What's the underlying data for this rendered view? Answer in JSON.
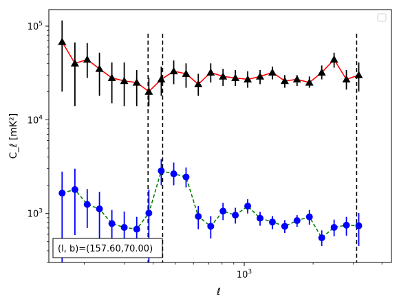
{
  "chart_data": {
    "type": "line",
    "title": "",
    "xlabel": "ℓ",
    "ylabel": "C_ℓ  [mK²]",
    "xscale": "log",
    "yscale": "log",
    "xlim": [
      140,
      4400
    ],
    "ylim": [
      300,
      150000
    ],
    "x_ticks": [
      {
        "value": 1000,
        "base": "10",
        "exp": "3"
      }
    ],
    "y_ticks": [
      {
        "value": 1000,
        "base": "10",
        "exp": "3"
      },
      {
        "value": 10000,
        "base": "10",
        "exp": "4"
      },
      {
        "value": 100000,
        "base": "10",
        "exp": "5"
      }
    ],
    "legend": {
      "placement": "top-right",
      "entries": []
    },
    "vlines": [
      {
        "x": 380,
        "color": "#000000",
        "style": "dashed"
      },
      {
        "x": 440,
        "color": "#000000",
        "style": "dashed"
      },
      {
        "x": 3100,
        "color": "#000000",
        "style": "dashed"
      }
    ],
    "annotation": "(l, b)=(157.60,70.00)",
    "series": [
      {
        "color": "#ff0000",
        "line_style": "solid",
        "marker": "triangle",
        "marker_color": "#000000",
        "errorbar_color": "#000000",
        "points": [
          {
            "x": 160,
            "y": 68000,
            "lo": 20000,
            "hi": 115000
          },
          {
            "x": 182,
            "y": 40000,
            "lo": 14000,
            "hi": 67000
          },
          {
            "x": 206,
            "y": 44000,
            "lo": 28000,
            "hi": 66000
          },
          {
            "x": 233,
            "y": 35000,
            "lo": 18000,
            "hi": 52000
          },
          {
            "x": 264,
            "y": 28000,
            "lo": 15000,
            "hi": 41000
          },
          {
            "x": 299,
            "y": 26000,
            "lo": 14000,
            "hi": 41000
          },
          {
            "x": 339,
            "y": 25000,
            "lo": 14000,
            "hi": 34000
          },
          {
            "x": 383,
            "y": 20000,
            "lo": 14000,
            "hi": 28000
          },
          {
            "x": 434,
            "y": 27000,
            "lo": 18000,
            "hi": 37000
          },
          {
            "x": 492,
            "y": 33000,
            "lo": 24000,
            "hi": 43000
          },
          {
            "x": 557,
            "y": 31000,
            "lo": 22000,
            "hi": 40000
          },
          {
            "x": 630,
            "y": 24000,
            "lo": 18000,
            "hi": 31000
          },
          {
            "x": 714,
            "y": 32000,
            "lo": 25000,
            "hi": 40000
          },
          {
            "x": 808,
            "y": 29000,
            "lo": 23000,
            "hi": 35000
          },
          {
            "x": 915,
            "y": 28000,
            "lo": 23000,
            "hi": 34000
          },
          {
            "x": 1036,
            "y": 27000,
            "lo": 22000,
            "hi": 33000
          },
          {
            "x": 1173,
            "y": 29000,
            "lo": 24000,
            "hi": 34000
          },
          {
            "x": 1328,
            "y": 32000,
            "lo": 27000,
            "hi": 37000
          },
          {
            "x": 1504,
            "y": 26000,
            "lo": 22000,
            "hi": 30000
          },
          {
            "x": 1702,
            "y": 27000,
            "lo": 23000,
            "hi": 30000
          },
          {
            "x": 1927,
            "y": 25000,
            "lo": 22000,
            "hi": 29000
          },
          {
            "x": 2182,
            "y": 32000,
            "lo": 27000,
            "hi": 38000
          },
          {
            "x": 2471,
            "y": 44000,
            "lo": 36000,
            "hi": 52000
          },
          {
            "x": 2797,
            "y": 27000,
            "lo": 21000,
            "hi": 34000
          },
          {
            "x": 3167,
            "y": 30000,
            "lo": 20000,
            "hi": 41000
          }
        ]
      },
      {
        "color": "#008000",
        "line_style": "dashed",
        "marker": "circle",
        "marker_color": "#0000ff",
        "errorbar_color": "#0000ff",
        "points": [
          {
            "x": 160,
            "y": 1650,
            "lo": 300,
            "hi": 2800
          },
          {
            "x": 182,
            "y": 1800,
            "lo": 590,
            "hi": 3000
          },
          {
            "x": 206,
            "y": 1250,
            "lo": 700,
            "hi": 1820
          },
          {
            "x": 233,
            "y": 1120,
            "lo": 520,
            "hi": 1700
          },
          {
            "x": 264,
            "y": 780,
            "lo": 480,
            "hi": 1090
          },
          {
            "x": 299,
            "y": 710,
            "lo": 370,
            "hi": 1050
          },
          {
            "x": 339,
            "y": 680,
            "lo": 400,
            "hi": 920
          },
          {
            "x": 383,
            "y": 1010,
            "lo": 300,
            "hi": 1800
          },
          {
            "x": 434,
            "y": 2850,
            "lo": 2000,
            "hi": 3800
          },
          {
            "x": 492,
            "y": 2650,
            "lo": 2000,
            "hi": 3500
          },
          {
            "x": 557,
            "y": 2450,
            "lo": 1900,
            "hi": 3100
          },
          {
            "x": 630,
            "y": 930,
            "lo": 680,
            "hi": 1200
          },
          {
            "x": 714,
            "y": 730,
            "lo": 540,
            "hi": 940
          },
          {
            "x": 808,
            "y": 1060,
            "lo": 850,
            "hi": 1300
          },
          {
            "x": 915,
            "y": 960,
            "lo": 780,
            "hi": 1150
          },
          {
            "x": 1036,
            "y": 1200,
            "lo": 1000,
            "hi": 1420
          },
          {
            "x": 1173,
            "y": 890,
            "lo": 740,
            "hi": 1040
          },
          {
            "x": 1328,
            "y": 810,
            "lo": 680,
            "hi": 940
          },
          {
            "x": 1504,
            "y": 730,
            "lo": 620,
            "hi": 850
          },
          {
            "x": 1702,
            "y": 840,
            "lo": 720,
            "hi": 960
          },
          {
            "x": 1927,
            "y": 920,
            "lo": 760,
            "hi": 1090
          },
          {
            "x": 2182,
            "y": 550,
            "lo": 450,
            "hi": 660
          },
          {
            "x": 2471,
            "y": 710,
            "lo": 570,
            "hi": 860
          },
          {
            "x": 2797,
            "y": 750,
            "lo": 580,
            "hi": 920
          },
          {
            "x": 3167,
            "y": 740,
            "lo": 450,
            "hi": 1010
          }
        ]
      }
    ]
  }
}
